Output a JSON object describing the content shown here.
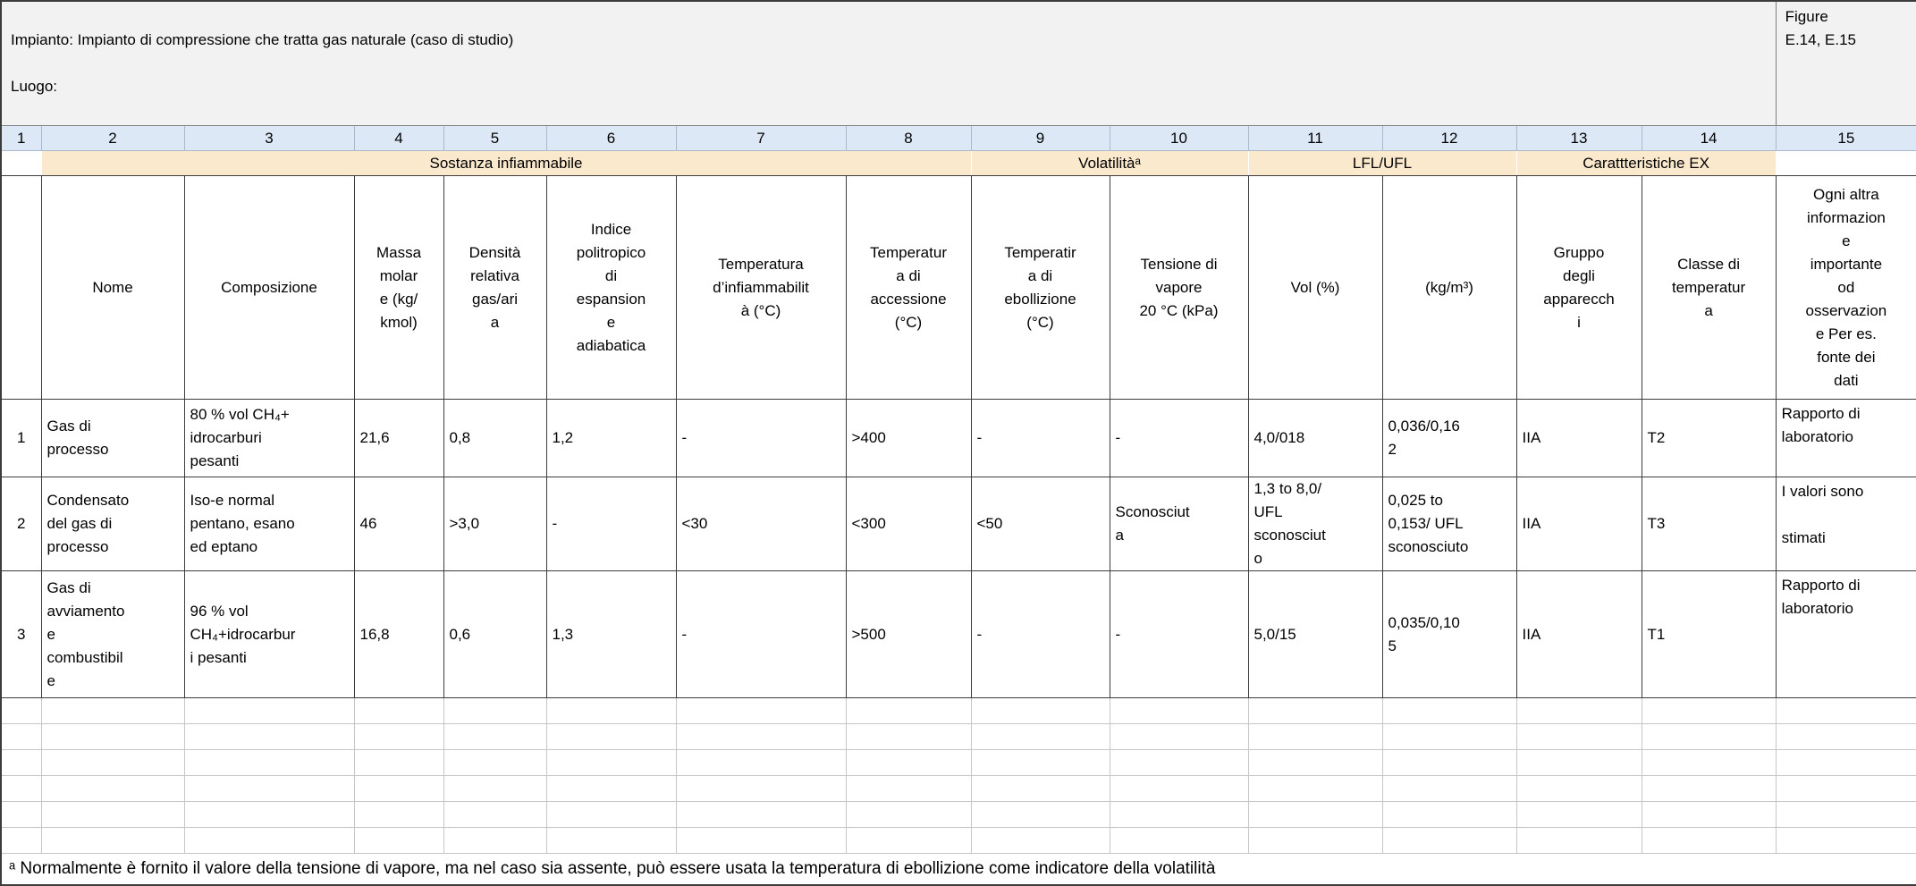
{
  "colors": {
    "title-bg": "#f2f2f2",
    "numbers-bg": "#dce8f5",
    "group-bg": "#fbe9ce",
    "grid-dark": "#3c3c3c",
    "grid-mid": "#808080",
    "grid-light": "#c6c6c6",
    "nums-sep": "#a9b9cb"
  },
  "title": {
    "impianto": "Impianto: Impianto di compressione che tratta gas naturale (caso di studio)",
    "luogo": "Luogo:",
    "figure": "Figure\nE.14, E.15"
  },
  "column_numbers": [
    "1",
    "2",
    "3",
    "4",
    "5",
    "6",
    "7",
    "8",
    "9",
    "10",
    "11",
    "12",
    "13",
    "14",
    "15"
  ],
  "group_headers": {
    "sostanza": "Sostanza infiammabile",
    "volatilita": "Volatilitàᵃ",
    "lfl_ufl": "LFL/UFL",
    "caratteristiche": "Carattteristiche EX"
  },
  "column_headers": [
    "",
    "Nome",
    "Composizione",
    "Massa\nmolar\ne (kg/\nkmol)",
    "Densità\nrelativa\ngas/ari\na",
    "Indice\npolitropico\ndi\nespansion\ne\nadiabatica",
    "Temperatura\nd’infiammabilit\nà (°C)",
    "Temperatur\na di\naccessione\n(°C)",
    "Temperatir\na di\nebollizione\n(°C)",
    "Tensione di\nvapore\n20 °C (kPa)",
    "Vol (%)",
    "(kg/m³)",
    "Gruppo\ndegli\napparecch\ni",
    "Classe di\ntemperatur\na",
    "Ogni altra\ninformazion\ne\nimportante\nod\nosservazion\ne Per es.\nfonte dei\ndati"
  ],
  "rows": [
    {
      "num": "1",
      "cells": [
        "Gas di\nprocesso",
        "80 % vol CH₄+\nidrocarburi\npesanti",
        "21,6",
        "0,8",
        "1,2",
        "-",
        ">400",
        "-",
        "-",
        "4,0/018",
        "0,036/0,16\n2",
        "IIA",
        "T2",
        "Rapporto di\nlaboratorio"
      ]
    },
    {
      "num": "2",
      "cells": [
        "Condensato\ndel gas di\nprocesso",
        "Iso-e normal\npentano, esano\ned eptano",
        "46",
        ">3,0",
        "-",
        "<30",
        "<300",
        "<50",
        "Sconosciut\na",
        "1,3 to 8,0/\nUFL\nsconosciut\no",
        "0,025 to\n0,153/ UFL\nsconosciuto",
        "IIA",
        "T3",
        "I valori sono\n\nstimati"
      ]
    },
    {
      "num": "3",
      "cells": [
        "Gas di\navviamento\ne\ncombustibil\ne",
        "96 % vol\nCH₄+idrocarbur\ni pesanti",
        "16,8",
        "0,6",
        "1,3",
        "-",
        ">500",
        "-",
        "-",
        "5,0/15",
        "0,035/0,10\n5",
        "IIA",
        "T1",
        "Rapporto di\nlaboratorio"
      ]
    }
  ],
  "empty_row_count": 6,
  "footnote": "ᵃ Normalmente è fornito il valore della tensione di vapore, ma nel caso sia assente, può essere usata la temperatura di ebollizione come indicatore della volatilità"
}
